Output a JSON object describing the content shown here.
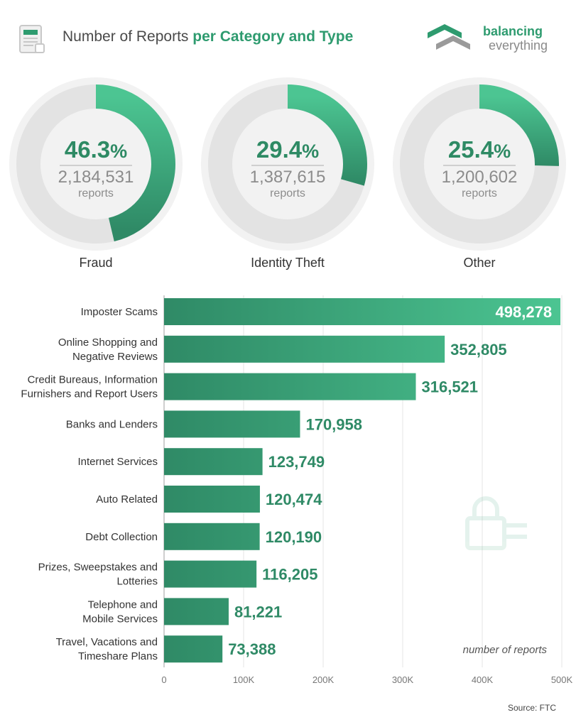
{
  "header": {
    "title_plain": "Number of Reports ",
    "title_bold": "per Category and Type",
    "doc_icon": "document-icon"
  },
  "logo": {
    "line1": "balancing",
    "line2": "everything",
    "icon": "balancing-everything-logo"
  },
  "colors": {
    "accent": "#2e9b6f",
    "bar_dark": "#2f8a66",
    "bar_light": "#4cc592",
    "ring_track": "#e3e3e3",
    "ring_outer": "#f2f2f2"
  },
  "donuts": [
    {
      "label": "Fraud",
      "percent": 46.3,
      "percent_text": "46.3",
      "count": "2,184,531",
      "unit": "reports"
    },
    {
      "label": "Identity Theft",
      "percent": 29.4,
      "percent_text": "29.4",
      "count": "1,387,615",
      "unit": "reports"
    },
    {
      "label": "Other",
      "percent": 25.4,
      "percent_text": "25.4",
      "count": "1,200,602",
      "unit": "reports"
    }
  ],
  "percent_symbol": "%",
  "chart_data": {
    "type": "bar",
    "orientation": "horizontal",
    "categories": [
      [
        "Imposter Scams"
      ],
      [
        "Online Shopping and",
        "Negative Reviews"
      ],
      [
        "Credit Bureaus, Information",
        "Furnishers and Report Users"
      ],
      [
        "Banks and Lenders"
      ],
      [
        "Internet Services"
      ],
      [
        "Auto Related"
      ],
      [
        "Debt Collection"
      ],
      [
        "Prizes, Sweepstakes and",
        "Lotteries"
      ],
      [
        "Telephone and",
        "Mobile Services"
      ],
      [
        "Travel, Vacations and",
        "Timeshare Plans"
      ]
    ],
    "values": [
      498278,
      352805,
      316521,
      170958,
      123749,
      120474,
      120190,
      116205,
      81221,
      73388
    ],
    "value_labels": [
      "498,278",
      "352,805",
      "316,521",
      "170,958",
      "123,749",
      "120,474",
      "120,190",
      "116,205",
      "81,221",
      "73,388"
    ],
    "x_ticks": [
      0,
      100000,
      200000,
      300000,
      400000,
      500000
    ],
    "x_tick_labels": [
      "0",
      "100K",
      "200K",
      "300K",
      "400K",
      "500K"
    ],
    "xlim": [
      0,
      500000
    ],
    "xlabel": "number of reports",
    "grid": true
  },
  "source": "Source: FTC"
}
